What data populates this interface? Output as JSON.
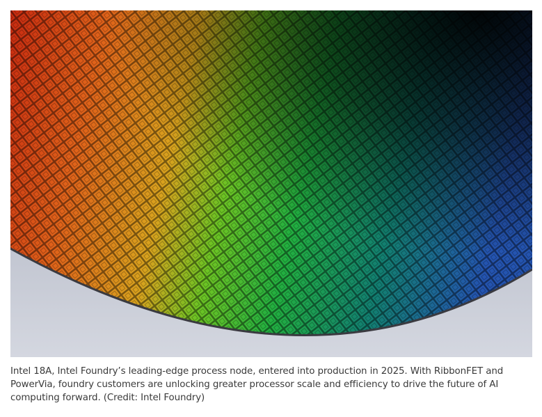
{
  "caption": "Intel 18A, Intel Foundry’s leading-edge process node, entered into production in 2025. With RibbonFET and PowerVia, foundry customers are unlocking greater processor scale and efficiency to drive the future of AI computing forward. (Credit: Intel Foundry)"
}
